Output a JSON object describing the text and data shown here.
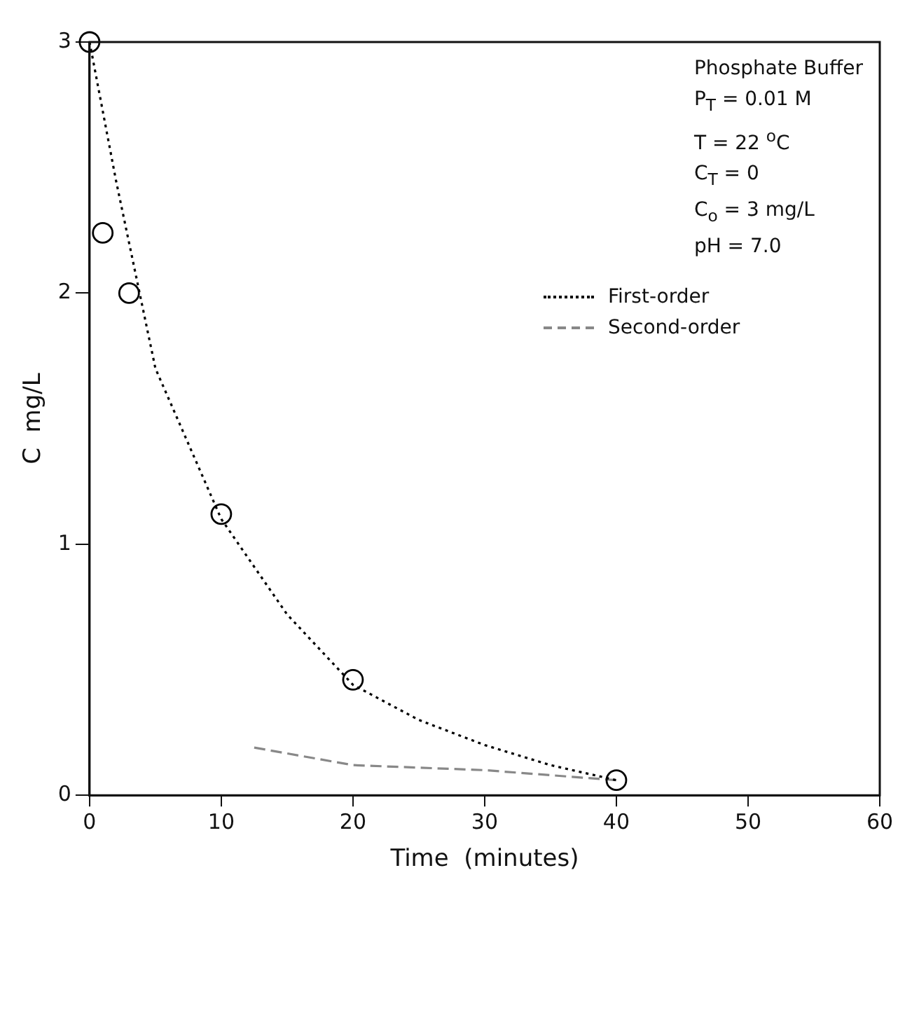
{
  "chart_data": {
    "type": "line",
    "xlabel": "Time  (minutes)",
    "ylabel": "C  mg/L",
    "xlim": [
      0,
      60
    ],
    "xticks": [
      0,
      10,
      20,
      30,
      40,
      50,
      60
    ],
    "ylim": [
      0,
      3
    ],
    "yticks": [
      0,
      1,
      2,
      3
    ],
    "grid": false,
    "legend": "top right",
    "annotations": [
      "Phosphate Buffer",
      "P$_{T}$ = 0.01 M",
      "T = 22 $^{o}$C",
      "C$_{T}$ = 0",
      "C$_{o}$ = 3 mg/L",
      "pH = 7.0"
    ],
    "series": [
      {
        "type": "scatter",
        "color": "#000000",
        "marker": "circle",
        "x": [
          0,
          1,
          3,
          10,
          20,
          40
        ],
        "values": [
          3,
          2.24,
          2.0,
          1.12,
          0.46,
          0.06
        ]
      },
      {
        "name": "First-order",
        "color": "#000000",
        "line_style": "dotted",
        "marker": "none",
        "x": [
          0,
          2,
          5,
          10,
          15,
          20,
          25,
          30,
          35,
          40
        ],
        "values": [
          3,
          2.45,
          1.7,
          1.1,
          0.72,
          0.44,
          0.3,
          0.2,
          0.12,
          0.06
        ]
      },
      {
        "name": "Second-order",
        "color": "#888888",
        "line_style": "dashed",
        "marker": "none",
        "x": [
          12.5,
          20,
          30,
          35,
          40
        ],
        "values": [
          0.19,
          0.12,
          0.1,
          0.08,
          0.06
        ]
      }
    ]
  }
}
